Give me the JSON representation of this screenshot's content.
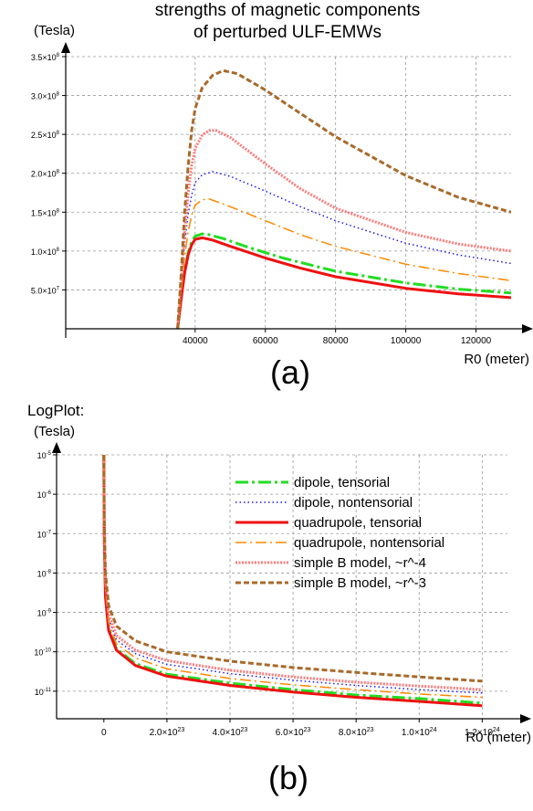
{
  "chart_data": [
    {
      "type": "line",
      "title_lines": [
        "strengths of magnetic components",
        "of perturbed ULF-EMWs"
      ],
      "ylabel": "(Tesla)",
      "xlabel": "R0 (meter)",
      "panel_label": "(a)",
      "xlim": [
        0,
        130000
      ],
      "ylim": [
        0,
        350000000
      ],
      "grid": true,
      "x_ticks": [
        {
          "value": 40000,
          "label": "40000"
        },
        {
          "value": 60000,
          "label": "60000"
        },
        {
          "value": 80000,
          "label": "80000"
        },
        {
          "value": 100000,
          "label": "100000"
        },
        {
          "value": 120000,
          "label": "120000"
        }
      ],
      "y_ticks": [
        {
          "value": 50000000,
          "label": "5.0×10",
          "exp": "7"
        },
        {
          "value": 100000000,
          "label": "1.0×10",
          "exp": "8"
        },
        {
          "value": 150000000,
          "label": "1.5×10",
          "exp": "8"
        },
        {
          "value": 200000000,
          "label": "2.0×10",
          "exp": "8"
        },
        {
          "value": 250000000,
          "label": "2.5×10",
          "exp": "8"
        },
        {
          "value": 300000000,
          "label": "3.0×10",
          "exp": "8"
        },
        {
          "value": 350000000,
          "label": "3.5×10",
          "exp": "8"
        }
      ],
      "series": [
        {
          "name": "dipole, tensorial",
          "color": "#22dd22",
          "dash": "14,4,3,4",
          "width": 3,
          "points": [
            [
              35000,
              0
            ],
            [
              36000,
              40000000
            ],
            [
              37000,
              74000000
            ],
            [
              38000,
              98000000
            ],
            [
              39000,
              112000000
            ],
            [
              40000,
              119000000
            ],
            [
              42000,
              122000000
            ],
            [
              44000,
              121000000
            ],
            [
              48000,
              116000000
            ],
            [
              55000,
              105000000
            ],
            [
              65000,
              91000000
            ],
            [
              80000,
              74000000
            ],
            [
              100000,
              59000000
            ],
            [
              115000,
              51000000
            ],
            [
              130000,
              46000000
            ]
          ]
        },
        {
          "name": "dipole, nontensorial",
          "color": "#1a1aee",
          "dash": "1.5,3",
          "width": 1.5,
          "points": [
            [
              35000,
              0
            ],
            [
              36000,
              55000000
            ],
            [
              37000,
              110000000
            ],
            [
              38000,
              148000000
            ],
            [
              39000,
              172000000
            ],
            [
              40000,
              188000000
            ],
            [
              42000,
              198000000
            ],
            [
              45000,
              202000000
            ],
            [
              50000,
              196000000
            ],
            [
              60000,
              177000000
            ],
            [
              70000,
              157000000
            ],
            [
              80000,
              139000000
            ],
            [
              100000,
              110000000
            ],
            [
              115000,
              95000000
            ],
            [
              130000,
              84000000
            ]
          ]
        },
        {
          "name": "quadrupole, tensorial",
          "color": "#ee1111",
          "dash": "",
          "width": 3,
          "points": [
            [
              35000,
              0
            ],
            [
              36000,
              38000000
            ],
            [
              37000,
              72000000
            ],
            [
              38000,
              95000000
            ],
            [
              39000,
              108000000
            ],
            [
              40000,
              115000000
            ],
            [
              42000,
              117000000
            ],
            [
              45000,
              114000000
            ],
            [
              50000,
              106000000
            ],
            [
              60000,
              91000000
            ],
            [
              70000,
              78000000
            ],
            [
              80000,
              67000000
            ],
            [
              100000,
              52000000
            ],
            [
              115000,
              45000000
            ],
            [
              130000,
              40000000
            ]
          ]
        },
        {
          "name": "quadrupole, nontensorial",
          "color": "#ff8800",
          "dash": "12,4,2,4",
          "width": 1.5,
          "points": [
            [
              35000,
              0
            ],
            [
              36000,
              47000000
            ],
            [
              37000,
              93000000
            ],
            [
              38000,
              125000000
            ],
            [
              39000,
              146000000
            ],
            [
              40000,
              159000000
            ],
            [
              42000,
              166000000
            ],
            [
              44000,
              167000000
            ],
            [
              50000,
              157000000
            ],
            [
              60000,
              139000000
            ],
            [
              70000,
              121000000
            ],
            [
              80000,
              106000000
            ],
            [
              100000,
              83000000
            ],
            [
              115000,
              71000000
            ],
            [
              130000,
              62000000
            ]
          ]
        },
        {
          "name": "simple B model, ~r^-4",
          "color": "#ff7b7b",
          "dash": "2,1.5",
          "width": 3,
          "points": [
            [
              35000,
              0
            ],
            [
              36000,
              60000000
            ],
            [
              37000,
              125000000
            ],
            [
              38000,
              175000000
            ],
            [
              39000,
              210000000
            ],
            [
              40000,
              232000000
            ],
            [
              42000,
              249000000
            ],
            [
              44000,
              255000000
            ],
            [
              46000,
              255000000
            ],
            [
              50000,
              246000000
            ],
            [
              60000,
              212000000
            ],
            [
              70000,
              180000000
            ],
            [
              80000,
              155000000
            ],
            [
              100000,
              124000000
            ],
            [
              115000,
              109000000
            ],
            [
              130000,
              100000000
            ]
          ]
        },
        {
          "name": "simple B model, ~r^-3",
          "color": "#a86a2a",
          "dash": "6,3",
          "width": 3,
          "points": [
            [
              35000,
              0
            ],
            [
              36000,
              70000000
            ],
            [
              37000,
              150000000
            ],
            [
              38000,
              210000000
            ],
            [
              39000,
              255000000
            ],
            [
              40000,
              283000000
            ],
            [
              42000,
              310000000
            ],
            [
              45000,
              326000000
            ],
            [
              48000,
              332000000
            ],
            [
              52000,
              328000000
            ],
            [
              60000,
              307000000
            ],
            [
              70000,
              277000000
            ],
            [
              80000,
              247000000
            ],
            [
              100000,
              197000000
            ],
            [
              115000,
              169000000
            ],
            [
              130000,
              150000000
            ]
          ]
        }
      ]
    },
    {
      "type": "line",
      "plot_type_label": "LogPlot:",
      "ylabel": "(Tesla)",
      "xlabel": "R0 (meter)",
      "panel_label": "(b)",
      "y_scale": "log",
      "xlim": [
        -1.5e+23,
        1.28e+24
      ],
      "ylim": [
        2e-12,
        1e-05
      ],
      "grid": true,
      "legend": "top-right",
      "x_ticks": [
        {
          "value": 0,
          "label": "0",
          "exp": ""
        },
        {
          "value": 2e+23,
          "label": "2.0×10",
          "exp": "23"
        },
        {
          "value": 4e+23,
          "label": "4.0×10",
          "exp": "23"
        },
        {
          "value": 6e+23,
          "label": "6.0×10",
          "exp": "23"
        },
        {
          "value": 8e+23,
          "label": "8.0×10",
          "exp": "23"
        },
        {
          "value": 1e+24,
          "label": "1.0×10",
          "exp": "24"
        },
        {
          "value": 1.2e+24,
          "label": "1.2×10",
          "exp": "24"
        }
      ],
      "y_ticks": [
        {
          "value": 1e-11,
          "label": "10",
          "exp": "-11"
        },
        {
          "value": 1e-10,
          "label": "10",
          "exp": "-10"
        },
        {
          "value": 1e-09,
          "label": "10",
          "exp": "-9"
        },
        {
          "value": 1e-08,
          "label": "10",
          "exp": "-8"
        },
        {
          "value": 1e-07,
          "label": "10",
          "exp": "-7"
        },
        {
          "value": 1e-06,
          "label": "10",
          "exp": "-6"
        },
        {
          "value": 1e-05,
          "label": "10",
          "exp": "-5"
        }
      ],
      "series": [
        {
          "name": "dipole, tensorial",
          "color": "#22dd22",
          "dash": "14,4,3,4",
          "width": 3,
          "points": [
            [
              0,
              1e-05
            ],
            [
              1e+21,
              1e-07
            ],
            [
              5e+21,
              3e-09
            ],
            [
              1.5e+22,
              4e-10
            ],
            [
              4e+22,
              1.2e-10
            ],
            [
              1e+23,
              5e-11
            ],
            [
              2e+23,
              2.7e-11
            ],
            [
              4e+23,
              1.6e-11
            ],
            [
              6e+23,
              1.1e-11
            ],
            [
              8e+23,
              8e-12
            ],
            [
              1e+24,
              6.5e-12
            ],
            [
              1.2e+24,
              5e-12
            ]
          ]
        },
        {
          "name": "dipole, nontensorial",
          "color": "#1a1aee",
          "dash": "1.5,3",
          "width": 1.5,
          "points": [
            [
              0,
              1e-05
            ],
            [
              1e+21,
              1.5e-07
            ],
            [
              5e+21,
              5e-09
            ],
            [
              1.5e+22,
              7e-10
            ],
            [
              4e+22,
              2e-10
            ],
            [
              1e+23,
              9e-11
            ],
            [
              2e+23,
              4.8e-11
            ],
            [
              4e+23,
              2.8e-11
            ],
            [
              6e+23,
              1.9e-11
            ],
            [
              8e+23,
              1.4e-11
            ],
            [
              1e+24,
              1.1e-11
            ],
            [
              1.2e+24,
              9e-12
            ]
          ]
        },
        {
          "name": "quadrupole, tensorial",
          "color": "#ee1111",
          "dash": "",
          "width": 3,
          "points": [
            [
              0,
              1e-05
            ],
            [
              1e+21,
              9e-08
            ],
            [
              5e+21,
              2.5e-09
            ],
            [
              1.5e+22,
              3.5e-10
            ],
            [
              4e+22,
              1.1e-10
            ],
            [
              1e+23,
              4.5e-11
            ],
            [
              2e+23,
              2.4e-11
            ],
            [
              4e+23,
              1.4e-11
            ],
            [
              6e+23,
              9.5e-12
            ],
            [
              8e+23,
              7e-12
            ],
            [
              1e+24,
              5.5e-12
            ],
            [
              1.2e+24,
              4.3e-12
            ]
          ]
        },
        {
          "name": "quadrupole, nontensorial",
          "color": "#ff8800",
          "dash": "12,4,2,4",
          "width": 1.5,
          "points": [
            [
              0,
              1e-05
            ],
            [
              1e+21,
              1.2e-07
            ],
            [
              5e+21,
              4e-09
            ],
            [
              1.5e+22,
              5.5e-10
            ],
            [
              4e+22,
              1.6e-10
            ],
            [
              1e+23,
              7e-11
            ],
            [
              2e+23,
              3.7e-11
            ],
            [
              4e+23,
              2.1e-11
            ],
            [
              6e+23,
              1.45e-11
            ],
            [
              8e+23,
              1.1e-11
            ],
            [
              1e+24,
              8.5e-12
            ],
            [
              1.2e+24,
              7e-12
            ]
          ]
        },
        {
          "name": "simple B model, ~r^-4",
          "color": "#ff7b7b",
          "dash": "2,1.5",
          "width": 3,
          "points": [
            [
              0,
              1e-05
            ],
            [
              1e+21,
              2e-07
            ],
            [
              5e+21,
              6.5e-09
            ],
            [
              1.5e+22,
              9e-10
            ],
            [
              4e+22,
              2.6e-10
            ],
            [
              1e+23,
              1.1e-10
            ],
            [
              2e+23,
              6e-11
            ],
            [
              4e+23,
              3.4e-11
            ],
            [
              6e+23,
              2.3e-11
            ],
            [
              8e+23,
              1.7e-11
            ],
            [
              1e+24,
              1.35e-11
            ],
            [
              1.2e+24,
              1.1e-11
            ]
          ]
        },
        {
          "name": "simple B model, ~r^-3",
          "color": "#a86a2a",
          "dash": "6,3",
          "width": 3,
          "points": [
            [
              0,
              1e-05
            ],
            [
              1e+21,
              3e-07
            ],
            [
              5e+21,
              1e-08
            ],
            [
              1.5e+22,
              1.5e-09
            ],
            [
              4e+22,
              4.5e-10
            ],
            [
              1e+23,
              1.9e-10
            ],
            [
              2e+23,
              1e-10
            ],
            [
              4e+23,
              5.8e-11
            ],
            [
              6e+23,
              4e-11
            ],
            [
              8e+23,
              3e-11
            ],
            [
              1e+24,
              2.3e-11
            ],
            [
              1.2e+24,
              1.8e-11
            ]
          ]
        }
      ]
    }
  ]
}
